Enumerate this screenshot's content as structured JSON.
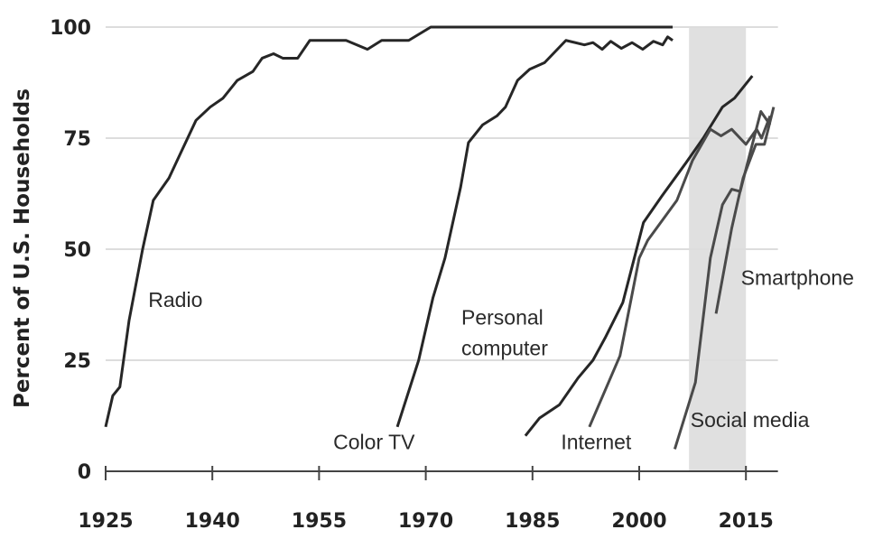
{
  "chart_data": {
    "type": "line",
    "title": "",
    "xlabel": "",
    "ylabel": "Percent of U.S. Households",
    "xlim": [
      1925,
      2019.5
    ],
    "ylim": [
      0,
      100
    ],
    "xticks": [
      1925,
      1940,
      1955,
      1970,
      1985,
      2000,
      2015
    ],
    "yticks": [
      0,
      25,
      50,
      75,
      100
    ],
    "grid": "horizontal",
    "shaded_region": [
      2007,
      2015
    ],
    "colors": {
      "axis": "#444444",
      "grid": "#dddddd",
      "shade": "#e0e0e0",
      "dark": "#262626",
      "mid": "#4a4a4a"
    },
    "series": [
      {
        "name": "Radio",
        "label_at": [
          1931,
          37
        ],
        "points": [
          [
            1925,
            10
          ],
          [
            1926,
            17
          ],
          [
            1927,
            19
          ],
          [
            1928.3,
            34
          ],
          [
            1930.2,
            50
          ],
          [
            1931.7,
            61
          ],
          [
            1933.9,
            66
          ],
          [
            1935.5,
            71.5
          ],
          [
            1937.7,
            79
          ],
          [
            1939.7,
            82
          ],
          [
            1941.5,
            84
          ],
          [
            1943.5,
            88
          ],
          [
            1945.7,
            90
          ],
          [
            1947,
            93
          ],
          [
            1948.6,
            94
          ],
          [
            1949.9,
            93
          ],
          [
            1952,
            93
          ],
          [
            1953.7,
            97
          ],
          [
            1958.8,
            97
          ],
          [
            1961.8,
            95
          ],
          [
            1963.8,
            97
          ],
          [
            1967.6,
            97
          ],
          [
            1970.7,
            100
          ],
          [
            2004.7,
            100
          ]
        ]
      },
      {
        "name": "Color TV",
        "label_at": [
          1957,
          5
        ],
        "points": [
          [
            1966,
            10
          ],
          [
            1969,
            25
          ],
          [
            1971,
            39
          ],
          [
            1972.7,
            48
          ],
          [
            1974.9,
            64
          ],
          [
            1976,
            74
          ],
          [
            1978,
            78
          ],
          [
            1980,
            80
          ],
          [
            1981.2,
            82
          ],
          [
            1982.9,
            88
          ],
          [
            1984.6,
            90.5
          ],
          [
            1986.7,
            92
          ],
          [
            1989.7,
            97
          ],
          [
            1992.3,
            96
          ],
          [
            1993.5,
            96.5
          ],
          [
            1994.8,
            95
          ],
          [
            1996,
            96.8
          ],
          [
            1997.5,
            95.2
          ],
          [
            1999,
            96.5
          ],
          [
            2000.5,
            95
          ],
          [
            2002,
            96.8
          ],
          [
            2003.3,
            96
          ],
          [
            2004,
            97.8
          ],
          [
            2004.7,
            97
          ]
        ]
      },
      {
        "name": "Personal computer",
        "label_lines": [
          "Personal",
          "computer"
        ],
        "label_at": [
          1975,
          33
        ],
        "points": [
          [
            1984,
            8
          ],
          [
            1986,
            12
          ],
          [
            1988.8,
            15
          ],
          [
            1991.4,
            21
          ],
          [
            1993.5,
            25
          ],
          [
            1995.2,
            30
          ],
          [
            1997.7,
            38
          ],
          [
            2000.6,
            56
          ],
          [
            2003.2,
            62
          ],
          [
            2006.6,
            69.5
          ],
          [
            2009,
            75
          ],
          [
            2011.7,
            82
          ],
          [
            2013.4,
            84
          ],
          [
            2015.9,
            89
          ]
        ]
      },
      {
        "name": "Internet",
        "label_at": [
          1989,
          5
        ],
        "points": [
          [
            1993,
            10
          ],
          [
            1997.3,
            26
          ],
          [
            2000,
            48
          ],
          [
            2001.2,
            52
          ],
          [
            2005.3,
            61
          ],
          [
            2007.5,
            70
          ],
          [
            2010,
            77
          ],
          [
            2011.5,
            75.5
          ],
          [
            2013,
            77
          ],
          [
            2015,
            73.6
          ],
          [
            2016.5,
            77
          ],
          [
            2017.2,
            75
          ],
          [
            2018.4,
            80
          ]
        ]
      },
      {
        "name": "Social media",
        "label_at": [
          2007.2,
          10
        ],
        "points": [
          [
            2005,
            5
          ],
          [
            2007.9,
            20
          ],
          [
            2010,
            48
          ],
          [
            2011.7,
            60
          ],
          [
            2013,
            63.5
          ],
          [
            2014.2,
            63
          ],
          [
            2015.9,
            73.6
          ],
          [
            2017.1,
            81
          ],
          [
            2018.4,
            78
          ]
        ]
      },
      {
        "name": "Smartphone",
        "label_at": [
          2014.3,
          42
        ],
        "points": [
          [
            2010.8,
            35.5
          ],
          [
            2013,
            54.7
          ],
          [
            2014.6,
            66
          ],
          [
            2016.4,
            73.6
          ],
          [
            2017.6,
            73.6
          ],
          [
            2018.9,
            82
          ]
        ]
      }
    ]
  }
}
